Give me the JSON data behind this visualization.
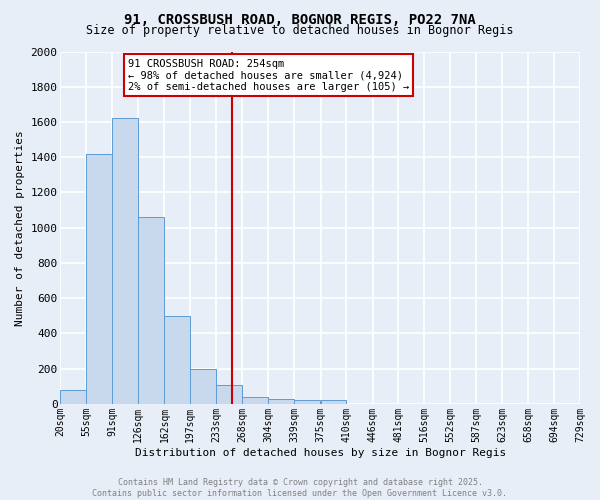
{
  "title": "91, CROSSBUSH ROAD, BOGNOR REGIS, PO22 7NA",
  "subtitle": "Size of property relative to detached houses in Bognor Regis",
  "xlabel": "Distribution of detached houses by size in Bognor Regis",
  "ylabel": "Number of detached properties",
  "bin_labels": [
    "20sqm",
    "55sqm",
    "91sqm",
    "126sqm",
    "162sqm",
    "197sqm",
    "233sqm",
    "268sqm",
    "304sqm",
    "339sqm",
    "375sqm",
    "410sqm",
    "446sqm",
    "481sqm",
    "516sqm",
    "552sqm",
    "587sqm",
    "623sqm",
    "658sqm",
    "694sqm",
    "729sqm"
  ],
  "bin_edges": [
    20,
    55,
    91,
    126,
    162,
    197,
    233,
    268,
    304,
    339,
    375,
    410,
    446,
    481,
    516,
    552,
    587,
    623,
    658,
    694,
    729
  ],
  "bar_heights": [
    80,
    1420,
    1620,
    1060,
    500,
    200,
    110,
    40,
    30,
    20,
    20,
    0,
    0,
    0,
    0,
    0,
    0,
    0,
    0,
    0
  ],
  "bar_color": "#c9d9ed",
  "bar_edge_color": "#5b9bd5",
  "vline_x": 254,
  "vline_color": "#cc0000",
  "annotation_title": "91 CROSSBUSH ROAD: 254sqm",
  "annotation_line1": "← 98% of detached houses are smaller (4,924)",
  "annotation_line2": "2% of semi-detached houses are larger (105) →",
  "annotation_box_color": "#ffffff",
  "annotation_box_edge": "#cc0000",
  "ylim": [
    0,
    2000
  ],
  "yticks": [
    0,
    200,
    400,
    600,
    800,
    1000,
    1200,
    1400,
    1600,
    1800,
    2000
  ],
  "footer_line1": "Contains HM Land Registry data © Crown copyright and database right 2025.",
  "footer_line2": "Contains public sector information licensed under the Open Government Licence v3.0.",
  "bg_color": "#e8eef8",
  "grid_color": "#ffffff"
}
